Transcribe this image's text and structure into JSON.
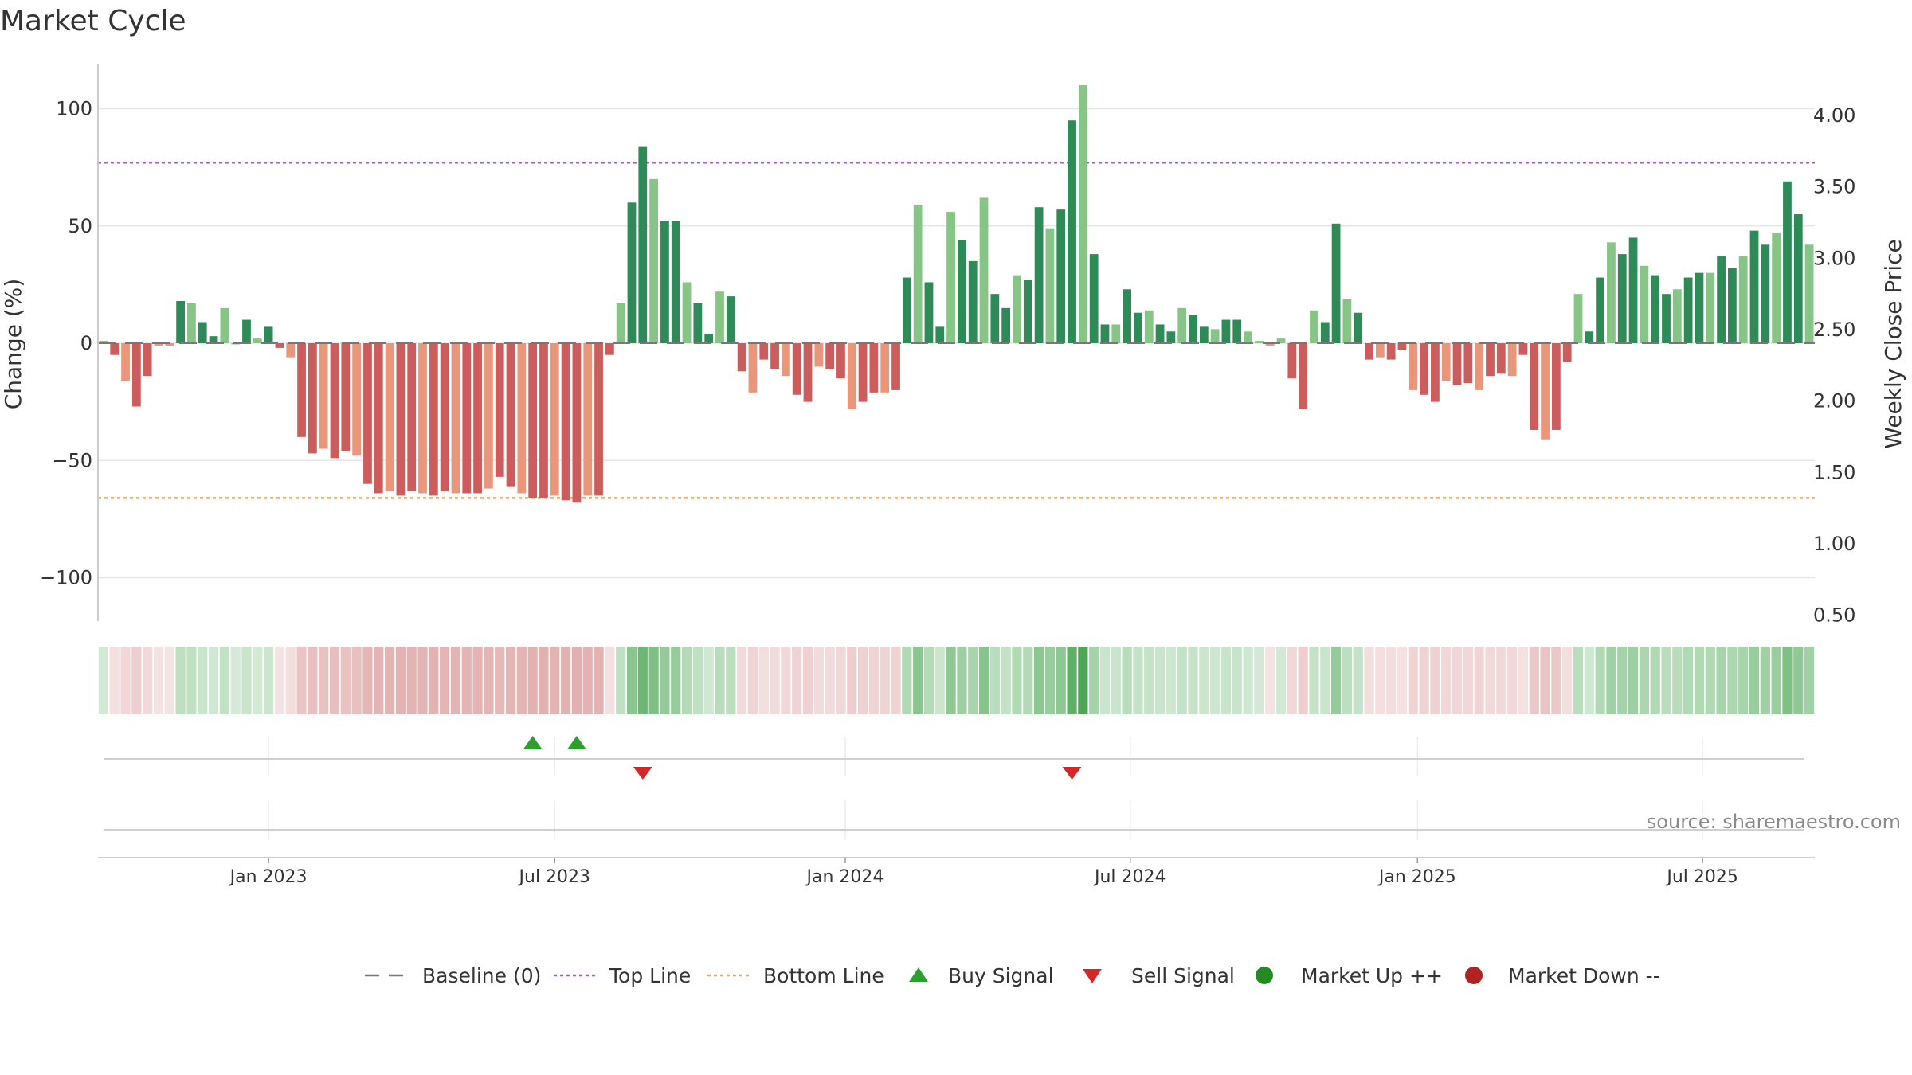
{
  "chart_data": {
    "type": "bar",
    "title": "Market Cycle",
    "ylabel": "Change (%)",
    "y2label": "Weekly Close Price",
    "ylim": [
      -120,
      120
    ],
    "y2lim": [
      0.41,
      4.24
    ],
    "yticks": [
      100,
      50,
      0,
      -50,
      -100
    ],
    "yticklabels": [
      "100",
      "50",
      "0",
      "−50",
      "−100"
    ],
    "y2ticks": [
      4.0,
      3.5,
      3.0,
      2.5,
      2.0,
      1.5,
      1.0,
      0.5
    ],
    "y2ticklabels": [
      "4.00",
      "3.50",
      "3.00",
      "2.50",
      "2.00",
      "1.50",
      "1.00",
      "0.50"
    ],
    "x_start_week": -15,
    "xticks": [
      0,
      26,
      52.4,
      78.3,
      104.4,
      130.3
    ],
    "xticklabels": [
      "Jan 2023",
      "Jul 2023",
      "Jan 2024",
      "Jul 2024",
      "Jan 2025",
      "Jul 2025"
    ],
    "top_line": 77,
    "bottom_line": -66,
    "baseline": 0,
    "values": [
      1,
      -5,
      -16,
      -27,
      -14,
      -1,
      -1,
      18,
      17,
      9,
      3,
      15,
      0,
      10,
      2,
      7,
      -2,
      -6,
      -40,
      -47,
      -45,
      -49,
      -46,
      -48,
      -60,
      -64,
      -63,
      -65,
      -63,
      -64,
      -65,
      -63,
      -64,
      -64,
      -64,
      -62,
      -57,
      -61,
      -64,
      -66,
      -66,
      -65,
      -67,
      -68,
      -65,
      -65,
      -5,
      17,
      60,
      84,
      70,
      52,
      52,
      26,
      17,
      4,
      22,
      20,
      -12,
      -21,
      -7,
      -11,
      -14,
      -22,
      -25,
      -10,
      -11,
      -15,
      -28,
      -25,
      -21,
      -21,
      -20,
      28,
      59,
      26,
      7,
      56,
      44,
      35,
      62,
      21,
      15,
      29,
      27,
      58,
      49,
      57,
      95,
      110,
      38,
      8,
      8,
      23,
      13,
      14,
      8,
      5,
      15,
      12,
      7,
      6,
      10,
      10,
      5,
      1,
      -1,
      2,
      -15,
      -28,
      14,
      9,
      51,
      19,
      13,
      -7,
      -6,
      -7,
      -3,
      -20,
      -22,
      -25,
      -16,
      -18,
      -17,
      -20,
      -14,
      -13,
      -14,
      -5,
      -37,
      -41,
      -37,
      -8,
      21,
      5,
      28,
      43,
      38,
      45,
      33,
      29,
      21,
      23,
      28,
      30,
      30,
      37,
      32,
      37,
      48,
      42,
      47,
      69,
      55,
      42
    ],
    "buy_signals": [
      39,
      43
    ],
    "sell_signals": [
      49,
      88
    ],
    "legend": [
      {
        "label": "Baseline (0)",
        "kind": "dash",
        "color": "#777777"
      },
      {
        "label": "Top Line",
        "kind": "dotted",
        "color": "#9b59d0"
      },
      {
        "label": "Bottom Line",
        "kind": "dotted",
        "color": "#f0a060"
      },
      {
        "label": "Buy Signal",
        "kind": "up-triangle",
        "color": "#2ca02c"
      },
      {
        "label": "Sell Signal",
        "kind": "down-triangle",
        "color": "#d62728"
      },
      {
        "label": "Market Up ++",
        "kind": "dot",
        "color": "#228b22"
      },
      {
        "label": "Market Down --",
        "kind": "dot",
        "color": "#b22222"
      }
    ],
    "source": "source: sharemaestro.com"
  },
  "colors": {
    "strong_up": "#2e8b57",
    "weak_up": "#86c586",
    "strong_down": "#cd5c5c",
    "weak_down": "#e9967a",
    "grid": "#e6e6e6",
    "axis": "#cccccc",
    "text": "#333333"
  }
}
